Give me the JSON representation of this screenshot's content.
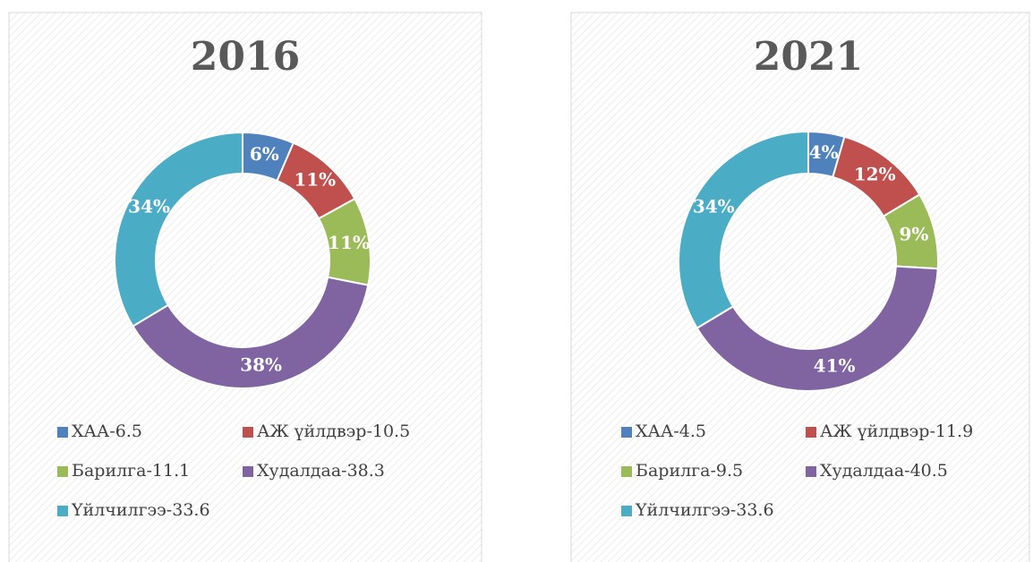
{
  "chart_data": [
    {
      "type": "donut",
      "title": "2016",
      "categories": [
        "ХАА-6.5",
        "АЖ үйлдвэр-10.5",
        "Барилга-11.1",
        "Худалдаа-38.3",
        "Үйлчилгээ-33.6"
      ],
      "values": [
        6.5,
        10.5,
        11.1,
        38.3,
        33.6
      ],
      "value_labels": [
        "6%",
        "11%",
        "11%",
        "38%",
        "34%"
      ],
      "colors": [
        "#4f81bd",
        "#c0504d",
        "#9bbb59",
        "#8064a2",
        "#4bacc6"
      ],
      "legend": "bottom"
    },
    {
      "type": "donut",
      "title": "2021",
      "categories": [
        "ХАА-4.5",
        "АЖ үйлдвэр-11.9",
        "Барилга-9.5",
        "Худалдаа-40.5",
        "Үйлчилгээ-33.6"
      ],
      "values": [
        4.5,
        11.9,
        9.5,
        40.5,
        33.6
      ],
      "value_labels": [
        "4%",
        "12%",
        "9%",
        "41%",
        "34%"
      ],
      "colors": [
        "#4f81bd",
        "#c0504d",
        "#9bbb59",
        "#8064a2",
        "#4bacc6"
      ],
      "legend": "bottom"
    }
  ]
}
